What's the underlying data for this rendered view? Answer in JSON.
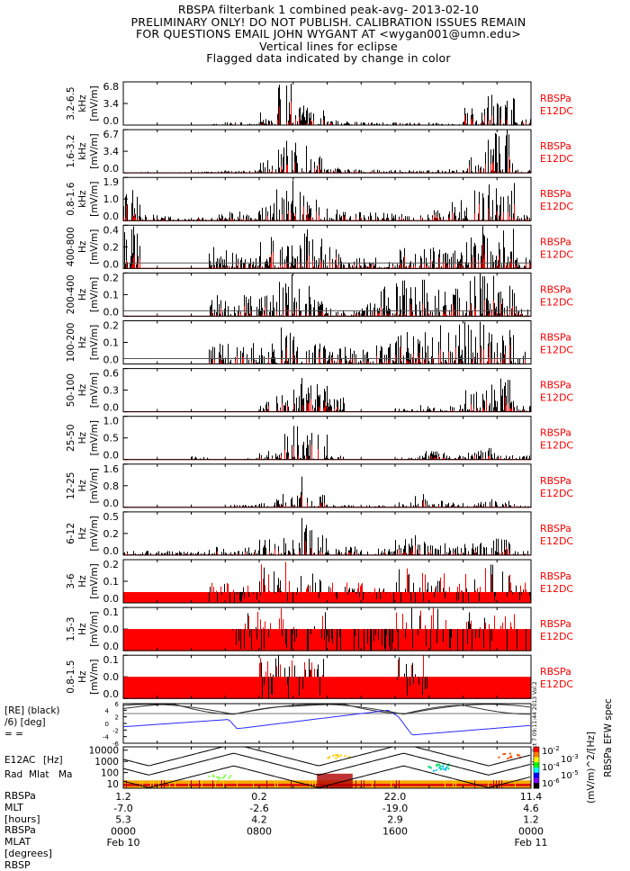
{
  "title_lines": [
    "RBSPA filterbank 1 combined peak-avg- 2013-02-10",
    "PRELIMINARY ONLY! DO NOT PUBLISH. CALIBRATION ISSUES REMAIN",
    "FOR QUESTIONS EMAIL JOHN WYGANT AT <wygan001@umn.edu>",
    "Vertical lines for eclipse",
    "Flagged data indicated by change in color"
  ],
  "colors": {
    "primary": "#000000",
    "flagged": "#ff0000",
    "mlat_line": "#2a2aff"
  },
  "right_label": [
    "RBSPa",
    "E12DC"
  ],
  "chart_data": [
    {
      "type": "area",
      "ylabel": [
        "3.2-6.5",
        "kHz",
        "[mV/m]"
      ],
      "yticks": [
        "6.8",
        "3.4",
        "0.0"
      ],
      "ylim": [
        0,
        6.8
      ],
      "hourly_peak": [
        0,
        0,
        0,
        0,
        0,
        0.2,
        0.5,
        0.3,
        2,
        6.8,
        4,
        2.5,
        0.8,
        0.6,
        0.5,
        0.5,
        0.4,
        0.4,
        0.5,
        0.3,
        3,
        5,
        4.5,
        1
      ]
    },
    {
      "type": "area",
      "ylabel": [
        "1.6-3.2",
        "kHz",
        "[mV/m]"
      ],
      "yticks": [
        "6.7",
        "3.4",
        "0.0"
      ],
      "ylim": [
        0,
        6.7
      ],
      "hourly_peak": [
        0.1,
        0.2,
        0.1,
        0.1,
        0.2,
        0.3,
        0.3,
        0.4,
        2,
        6.7,
        5,
        3,
        0.8,
        0.6,
        0.5,
        0.5,
        0.5,
        0.4,
        0.5,
        0.6,
        3,
        6.7,
        6.7,
        0.5
      ]
    },
    {
      "type": "area",
      "ylabel": [
        "0.8-1.6",
        "kHz",
        "[mV/m]"
      ],
      "yticks": [
        "1.9",
        "1.0",
        "0.0"
      ],
      "ylim": [
        0,
        1.9
      ],
      "hourly_peak": [
        1.9,
        0.3,
        0.2,
        0.1,
        0.2,
        0.3,
        0.4,
        0.4,
        0.8,
        1.9,
        1.5,
        1,
        0.5,
        0.4,
        0.4,
        0.4,
        0.3,
        0.4,
        0.5,
        1,
        1.9,
        1.9,
        1.9,
        0.3
      ]
    },
    {
      "type": "area",
      "ylabel": [
        "400-800",
        "Hz",
        "[mV/m]"
      ],
      "yticks": [
        "0.4",
        "0.2",
        "0.0"
      ],
      "ylim": [
        0,
        0.4
      ],
      "hourly_peak": [
        0.4,
        0,
        0,
        0,
        0,
        0.2,
        0.2,
        0.1,
        0.3,
        0.4,
        0.4,
        0.3,
        0.2,
        0.1,
        0.1,
        0.1,
        0.2,
        0.3,
        0.2,
        0.2,
        0.3,
        0.4,
        0.4,
        0.1
      ]
    },
    {
      "type": "area",
      "ylabel": [
        "200-400",
        "Hz",
        "[mV/m]"
      ],
      "yticks": [
        "0.2",
        "0.1",
        "0.0"
      ],
      "ylim": [
        0,
        0.2
      ],
      "hourly_peak": [
        0,
        0,
        0,
        0,
        0,
        0.1,
        0.05,
        0.1,
        0.1,
        0.2,
        0.15,
        0.1,
        0.05,
        0.05,
        0.1,
        0.15,
        0.2,
        0.2,
        0.15,
        0.15,
        0.2,
        0.2,
        0.15,
        0.05
      ]
    },
    {
      "type": "area",
      "ylabel": [
        "100-200",
        "Hz",
        "[mV/m]"
      ],
      "yticks": [
        "0.2",
        "0.1",
        "0.0"
      ],
      "ylim": [
        0,
        0.2
      ],
      "hourly_peak": [
        0,
        0,
        0,
        0,
        0,
        0.1,
        0.1,
        0.1,
        0.1,
        0.2,
        0.15,
        0.1,
        0.1,
        0.1,
        0.1,
        0.1,
        0.15,
        0.2,
        0.2,
        0.2,
        0.2,
        0.2,
        0.2,
        0.1
      ]
    },
    {
      "type": "area",
      "ylabel": [
        "50-100",
        "Hz",
        "[mV/m]"
      ],
      "yticks": [
        "0.6",
        "0.3",
        "0.0"
      ],
      "ylim": [
        0,
        0.6
      ],
      "hourly_peak": [
        0,
        0,
        0,
        0,
        0,
        0,
        0,
        0,
        0.2,
        0.3,
        0.5,
        0.6,
        0.2,
        0,
        0,
        0,
        0.05,
        0.1,
        0.1,
        0.1,
        0.3,
        0.4,
        0.5,
        0.1
      ]
    },
    {
      "type": "area",
      "ylabel": [
        "25-50",
        "Hz",
        "[mV/m]"
      ],
      "yticks": [
        "1.0",
        "0.5",
        "0.0"
      ],
      "ylim": [
        0,
        1.0
      ],
      "hourly_peak": [
        0,
        0,
        0,
        0,
        0.1,
        0,
        0,
        0.05,
        0.2,
        0.6,
        0.8,
        1.0,
        0.1,
        0,
        0,
        0,
        0.05,
        0.2,
        0.2,
        0.1,
        0.2,
        0.3,
        0.2,
        0.1
      ]
    },
    {
      "type": "area",
      "ylabel": [
        "12-25",
        "Hz",
        "[mV/m]"
      ],
      "yticks": [
        "1.6",
        "0.8",
        "0.0"
      ],
      "ylim": [
        0,
        1.6
      ],
      "hourly_peak": [
        0,
        0,
        0,
        0,
        0,
        0,
        0.1,
        0.1,
        0.2,
        0.5,
        1.5,
        0.6,
        0.1,
        0.1,
        0.1,
        0.1,
        0.2,
        0.5,
        0.3,
        0.2,
        0.2,
        0.3,
        0.3,
        0.1
      ]
    },
    {
      "type": "area",
      "ylabel": [
        "6-12",
        "Hz",
        "[mV/m]"
      ],
      "yticks": [
        "0.5",
        "0.2",
        "0.0"
      ],
      "ylim": [
        0,
        0.5
      ],
      "hourly_peak": [
        0.05,
        0.05,
        0.05,
        0.05,
        0.05,
        0.1,
        0.05,
        0.1,
        0.2,
        0.2,
        0.5,
        0.3,
        0.1,
        0.1,
        0.1,
        0.1,
        0.2,
        0.25,
        0.15,
        0.1,
        0.15,
        0.2,
        0.2,
        0.05
      ]
    },
    {
      "type": "area",
      "ylabel": [
        "3-6",
        "Hz",
        "[mV/m]"
      ],
      "yticks": [
        "0.2",
        "0.1",
        "0.0"
      ],
      "ylim": [
        0,
        0.2
      ],
      "red_floor": 0.05,
      "hourly_peak": [
        0,
        0,
        0,
        0,
        0,
        0.1,
        0.1,
        0.1,
        0.2,
        0.2,
        0.15,
        0.15,
        0.1,
        0.1,
        0.1,
        0.1,
        0.2,
        0.2,
        0.15,
        0.1,
        0.15,
        0.2,
        0.15,
        0.1
      ]
    },
    {
      "type": "area",
      "ylabel": [
        "1.5-3",
        "Hz",
        "[mV/m]"
      ],
      "yticks": [
        "0.1",
        "0.0",
        "0.0"
      ],
      "ylim": [
        0,
        0.1
      ],
      "red_floor": 0.05,
      "hourly_peak": [
        0,
        0,
        0,
        0,
        0,
        0,
        0.05,
        0.1,
        0.1,
        0.1,
        0.1,
        0.1,
        0.05,
        0.05,
        0.05,
        0.05,
        0.1,
        0.1,
        0.1,
        0.05,
        0.1,
        0.1,
        0.1,
        0.05
      ]
    },
    {
      "type": "area",
      "ylabel": [
        "0.8-1.5",
        "Hz",
        "[mV/m]"
      ],
      "yticks": [
        "0.1",
        "0.0",
        "0.0"
      ],
      "ylim": [
        0,
        0.1
      ],
      "red_floor": 0.05,
      "hourly_peak": [
        0,
        0,
        0,
        0,
        0,
        0,
        0,
        0,
        0.1,
        0.1,
        0.1,
        0.1,
        0,
        0,
        0,
        0,
        0.1,
        0.1,
        0,
        0,
        0,
        0,
        0,
        0
      ]
    },
    {
      "type": "line",
      "ylabel": [
        "[RE] (black)",
        "/6) [deg]",
        "= ="
      ],
      "yticks": [
        "6",
        "4",
        "2",
        "0",
        "-2",
        "-4",
        "-6"
      ],
      "ylim": [
        -6,
        6
      ],
      "series": [
        {
          "color": "black",
          "hours": [
            0,
            3,
            6.5,
            10,
            13,
            16.6,
            20,
            24
          ],
          "values": [
            4.5,
            5.8,
            2.8,
            5.2,
            5.8,
            3.0,
            5.5,
            2.8
          ]
        },
        {
          "color": "blue",
          "hours": [
            0,
            6.2,
            6.7,
            15.6,
            16.2,
            17,
            24
          ],
          "values": [
            -1,
            1.2,
            -1.6,
            4,
            2,
            -3.5,
            -0.6
          ]
        }
      ],
      "stamp": "Mon Oct 7 09:11:44 2013 Vol.2"
    },
    {
      "type": "heatmap",
      "ylabel": [
        "E12AC",
        "[Hz]",
        "Rad",
        "Mlat",
        "Ma"
      ],
      "yticks": [
        "10000",
        "1000",
        "100",
        "10"
      ],
      "ylim": [
        4,
        20000
      ],
      "yscale": "log",
      "colorbar": {
        "ticks": [
          "10^-2",
          "10^-3",
          "10^-4",
          "10^-5",
          "10^-6"
        ],
        "label": "(mV/m)^2/[Hz]",
        "title": "RBSPa EFW spec"
      }
    }
  ],
  "time_axis": {
    "row_labels": [
      "RBSPa",
      "MLT",
      "[hours]",
      "RBSPa",
      "MLAT",
      "[degrees]",
      "RBSP"
    ],
    "columns": [
      {
        "v": [
          "1.2",
          "-7.0",
          "5.3",
          "0000",
          "Feb 10"
        ]
      },
      {
        "v": [
          "0.2",
          "-2.6",
          "4.2",
          "0800",
          ""
        ]
      },
      {
        "v": [
          "22.0",
          "-19.0",
          "2.9",
          "1600",
          ""
        ]
      },
      {
        "v": [
          "11.4",
          "4.6",
          "1.2",
          "0000",
          "Feb 11"
        ]
      }
    ]
  }
}
